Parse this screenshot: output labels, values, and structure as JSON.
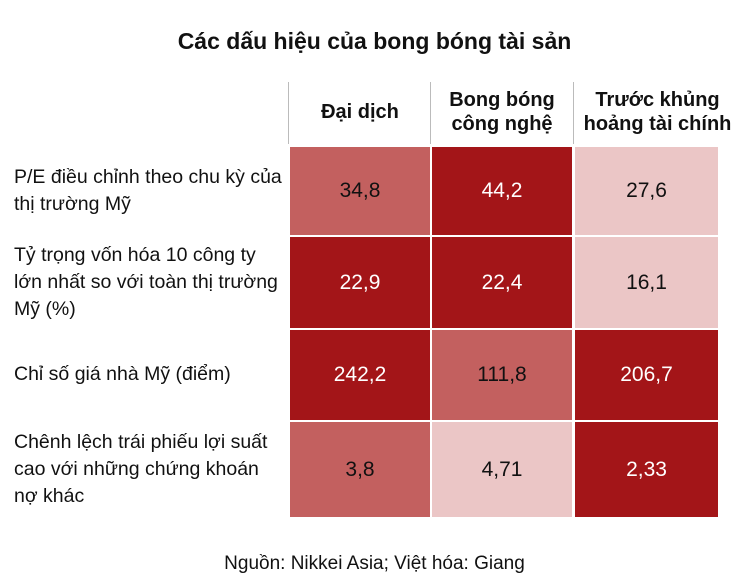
{
  "title": "Các dấu hiệu của bong bóng tài sản",
  "table": {
    "columns": [
      "Đại dịch",
      "Bong bóng công nghệ",
      "Trước khủng hoảng tài chính"
    ],
    "rows": [
      {
        "label": "P/E điều chỉnh theo chu kỳ của thị trường Mỹ",
        "cells": [
          "34,8",
          "44,2",
          "27,6"
        ]
      },
      {
        "label": "Tỷ trọng vốn hóa 10 công ty lớn nhất so với toàn thị trường Mỹ (%)",
        "cells": [
          "22,9",
          "22,4",
          "16,1"
        ]
      },
      {
        "label": "Chỉ số giá nhà Mỹ (điểm)",
        "cells": [
          "242,2",
          "111,8",
          "206,7"
        ]
      },
      {
        "label": "Chênh lệch trái phiếu lợi suất cao với những chứng khoán nợ khác",
        "cells": [
          "3,8",
          "4,71",
          "2,33"
        ]
      }
    ]
  },
  "source": "Nguồn: Nikkei Asia; Việt hóa: Giang"
}
